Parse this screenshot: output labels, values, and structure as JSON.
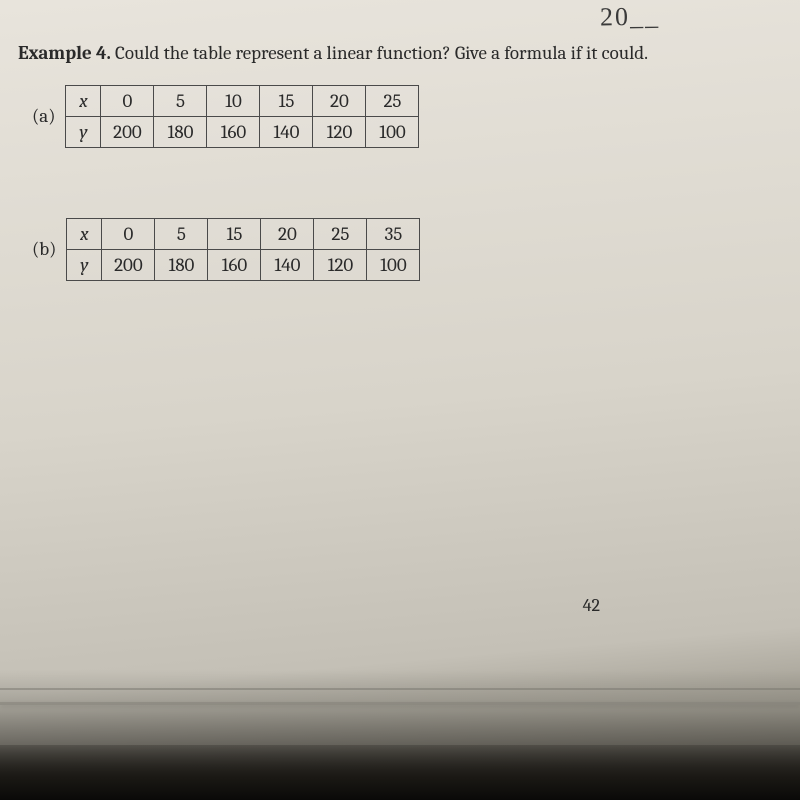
{
  "scribble": "20__",
  "title_bold": "Example 4.",
  "title_rest": " Could the table represent a linear function? Give a formula if it could.",
  "problems": [
    {
      "letter": "(a)",
      "rows": [
        {
          "hdr": "x",
          "cells": [
            "0",
            "5",
            "10",
            "15",
            "20",
            "25"
          ]
        },
        {
          "hdr": "y",
          "cells": [
            "200",
            "180",
            "160",
            "140",
            "120",
            "100"
          ]
        }
      ]
    },
    {
      "letter": "(b)",
      "rows": [
        {
          "hdr": "x",
          "cells": [
            "0",
            "5",
            "15",
            "20",
            "25",
            "35"
          ]
        },
        {
          "hdr": "y",
          "cells": [
            "200",
            "180",
            "160",
            "140",
            "120",
            "100"
          ]
        }
      ]
    }
  ],
  "pagenum": "42",
  "style": {
    "font_family": "Cambria, Georgia, serif",
    "title_fontsize": 19,
    "cell_fontsize": 19,
    "border_color": "#4a4a4a",
    "border_width": 1.5,
    "text_color": "#2a2a2a",
    "bg_gradient": [
      "#e8e4dc",
      "#d8d4ca",
      "#c4c0b6",
      "#888478"
    ],
    "cell_min_width": 52,
    "hdr_min_width": 34
  }
}
